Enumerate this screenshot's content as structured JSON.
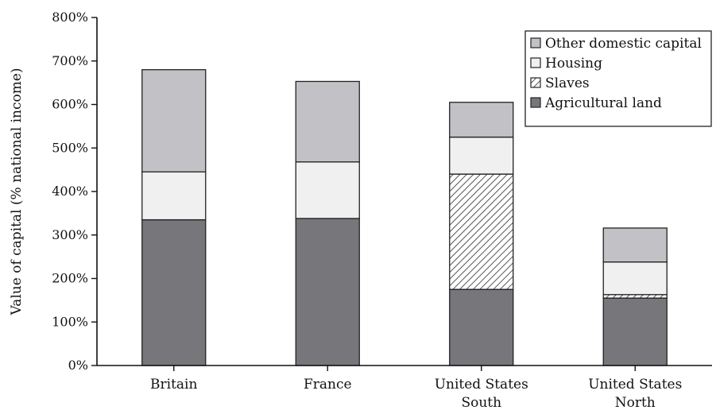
{
  "chart_data": {
    "type": "bar",
    "stacked": true,
    "title": "",
    "xlabel": "",
    "ylabel": "Value of capital (% national income)",
    "ylim": [
      0,
      800
    ],
    "yticks": [
      0,
      100,
      200,
      300,
      400,
      500,
      600,
      700,
      800
    ],
    "ytick_labels": [
      "0%",
      "100%",
      "200%",
      "300%",
      "400%",
      "500%",
      "600%",
      "700%",
      "800%"
    ],
    "categories": [
      [
        "Britain"
      ],
      [
        "France"
      ],
      [
        "United States",
        "South"
      ],
      [
        "United States",
        "North"
      ]
    ],
    "series": [
      {
        "name": "Agricultural land",
        "values": [
          335,
          338,
          175,
          155
        ]
      },
      {
        "name": "Slaves",
        "values": [
          0,
          0,
          265,
          8
        ]
      },
      {
        "name": "Housing",
        "values": [
          110,
          130,
          85,
          75
        ]
      },
      {
        "name": "Other domestic capital",
        "values": [
          235,
          185,
          80,
          78
        ]
      }
    ],
    "legend_order": [
      "Other domestic capital",
      "Housing",
      "Slaves",
      "Agricultural land"
    ],
    "legend_position": "top-right",
    "colors": {
      "Agricultural land": "#77777b",
      "Slaves": "hatch",
      "Housing": "#f0f0f0",
      "Other domestic capital": "#c2c2c6"
    },
    "grid": false
  }
}
